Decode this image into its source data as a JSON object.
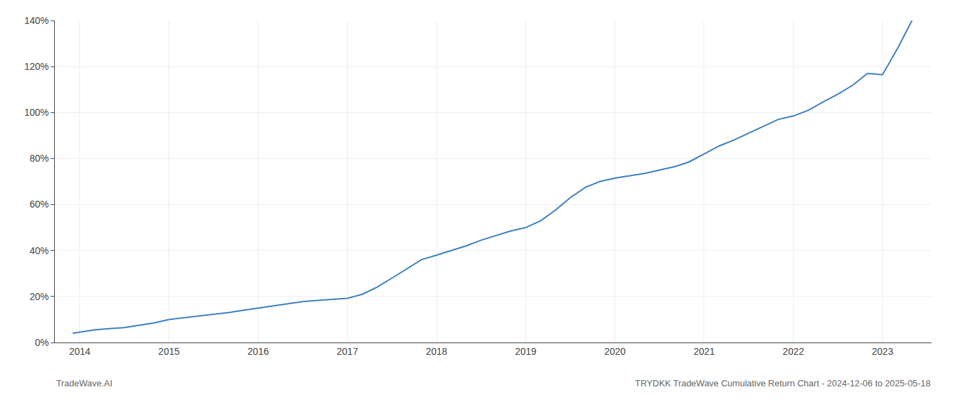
{
  "chart_data": {
    "type": "line",
    "title": "TRYDKK TradeWave Cumulative Return Chart - 2024-12-06 to 2025-05-18",
    "annotations": [
      {
        "text": "TradeWave.AI"
      }
    ],
    "x": [
      2013.92,
      2014.0,
      2014.17,
      2014.33,
      2014.5,
      2014.67,
      2014.83,
      2015.0,
      2015.17,
      2015.33,
      2015.5,
      2015.67,
      2015.83,
      2016.0,
      2016.17,
      2016.33,
      2016.5,
      2016.67,
      2016.83,
      2017.0,
      2017.17,
      2017.33,
      2017.5,
      2017.67,
      2017.83,
      2018.0,
      2018.17,
      2018.33,
      2018.5,
      2018.67,
      2018.83,
      2019.0,
      2019.17,
      2019.33,
      2019.5,
      2019.67,
      2019.83,
      2020.0,
      2020.17,
      2020.33,
      2020.5,
      2020.67,
      2020.83,
      2021.0,
      2021.17,
      2021.33,
      2021.5,
      2021.67,
      2021.83,
      2022.0,
      2022.17,
      2022.33,
      2022.5,
      2022.67,
      2022.83,
      2023.0,
      2023.17,
      2023.33
    ],
    "values": [
      4.0,
      4.5,
      5.5,
      6.0,
      6.5,
      7.5,
      8.5,
      10.0,
      10.8,
      11.5,
      12.2,
      13.0,
      14.0,
      15.0,
      16.0,
      17.0,
      17.8,
      18.3,
      18.8,
      19.2,
      21.0,
      24.0,
      28.0,
      32.0,
      36.0,
      38.0,
      40.0,
      42.0,
      44.5,
      46.5,
      48.5,
      50.0,
      53.0,
      57.5,
      63.0,
      67.5,
      70.0,
      71.5,
      72.5,
      73.5,
      75.0,
      76.5,
      78.5,
      82.0,
      85.5,
      88.0,
      91.0,
      94.0,
      97.0,
      98.5,
      101.0,
      104.5,
      108.0,
      112.0,
      117.0,
      116.5,
      128.0,
      140.0
    ],
    "color": "#3a7ebf",
    "xlim": [
      2013.72,
      2023.55
    ],
    "xticks": [
      2014,
      2015,
      2016,
      2017,
      2018,
      2019,
      2020,
      2021,
      2022,
      2023
    ],
    "ylim": [
      0,
      140
    ],
    "yticks": [
      {
        "value": 0,
        "label": "0%"
      },
      {
        "value": 20,
        "label": "20%"
      },
      {
        "value": 40,
        "label": "40%"
      },
      {
        "value": 60,
        "label": "60%"
      },
      {
        "value": 80,
        "label": "80%"
      },
      {
        "value": 100,
        "label": "100%"
      },
      {
        "value": 120,
        "label": "120%"
      },
      {
        "value": 140,
        "label": "140%"
      }
    ],
    "grid": true
  }
}
